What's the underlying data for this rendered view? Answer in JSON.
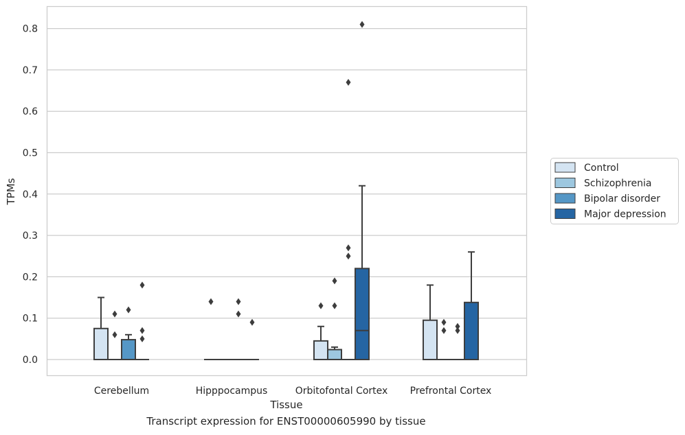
{
  "caption": "Transcript expression for ENST00000605990 by tissue",
  "chart_data": {
    "type": "box",
    "title": "",
    "xlabel": "Tissue",
    "ylabel": "TPMs",
    "ylim": [
      -0.04,
      0.855
    ],
    "yticks": [
      0.0,
      0.1,
      0.2,
      0.3,
      0.4,
      0.5,
      0.6,
      0.7,
      0.8
    ],
    "ytick_labels": [
      "0.0",
      "0.1",
      "0.2",
      "0.3",
      "0.4",
      "0.5",
      "0.6",
      "0.7",
      "0.8"
    ],
    "grid": true,
    "legend_position": "right",
    "categories": [
      "Cerebellum",
      "Hipppocampus",
      "Orbitofontal Cortex",
      "Prefrontal Cortex"
    ],
    "series": [
      {
        "name": "Control",
        "color": "#d4e4f2",
        "boxes": [
          {
            "q1": 0.0,
            "median": 0.0,
            "q3": 0.075,
            "whisker_low": 0.0,
            "whisker_high": 0.15,
            "outliers": []
          },
          {
            "q1": 0.0,
            "median": 0.0,
            "q3": 0.0,
            "whisker_low": 0.0,
            "whisker_high": 0.0,
            "outliers": [
              0.14
            ]
          },
          {
            "q1": 0.0,
            "median": 0.0,
            "q3": 0.045,
            "whisker_low": 0.0,
            "whisker_high": 0.08,
            "outliers": [
              0.13
            ]
          },
          {
            "q1": 0.0,
            "median": 0.0,
            "q3": 0.095,
            "whisker_low": 0.0,
            "whisker_high": 0.18,
            "outliers": []
          }
        ]
      },
      {
        "name": "Schizophrenia",
        "color": "#9dc7df",
        "boxes": [
          {
            "q1": 0.0,
            "median": 0.0,
            "q3": 0.0,
            "whisker_low": 0.0,
            "whisker_high": 0.0,
            "outliers": [
              0.06,
              0.11
            ]
          },
          {
            "q1": 0.0,
            "median": 0.0,
            "q3": 0.0,
            "whisker_low": 0.0,
            "whisker_high": 0.0,
            "outliers": []
          },
          {
            "q1": 0.0,
            "median": 0.0,
            "q3": 0.024,
            "whisker_low": 0.0,
            "whisker_high": 0.03,
            "outliers": [
              0.13,
              0.19
            ]
          },
          {
            "q1": 0.0,
            "median": 0.0,
            "q3": 0.0,
            "whisker_low": 0.0,
            "whisker_high": 0.0,
            "outliers": [
              0.07,
              0.09
            ]
          }
        ]
      },
      {
        "name": "Bipolar disorder",
        "color": "#5597c6",
        "boxes": [
          {
            "q1": 0.0,
            "median": 0.0,
            "q3": 0.048,
            "whisker_low": 0.0,
            "whisker_high": 0.06,
            "outliers": [
              0.12
            ]
          },
          {
            "q1": 0.0,
            "median": 0.0,
            "q3": 0.0,
            "whisker_low": 0.0,
            "whisker_high": 0.0,
            "outliers": [
              0.11,
              0.14
            ]
          },
          {
            "q1": 0.0,
            "median": 0.0,
            "q3": 0.0,
            "whisker_low": 0.0,
            "whisker_high": 0.0,
            "outliers": [
              0.25,
              0.27,
              0.67
            ]
          },
          {
            "q1": 0.0,
            "median": 0.0,
            "q3": 0.0,
            "whisker_low": 0.0,
            "whisker_high": 0.0,
            "outliers": [
              0.07,
              0.08
            ]
          }
        ]
      },
      {
        "name": "Major depression",
        "color": "#2565a3",
        "boxes": [
          {
            "q1": 0.0,
            "median": 0.0,
            "q3": 0.0,
            "whisker_low": 0.0,
            "whisker_high": 0.0,
            "outliers": [
              0.05,
              0.07,
              0.18
            ]
          },
          {
            "q1": 0.0,
            "median": 0.0,
            "q3": 0.0,
            "whisker_low": 0.0,
            "whisker_high": 0.0,
            "outliers": [
              0.09
            ]
          },
          {
            "q1": 0.0,
            "median": 0.07,
            "q3": 0.22,
            "whisker_low": 0.0,
            "whisker_high": 0.42,
            "outliers": [
              0.81
            ]
          },
          {
            "q1": 0.0,
            "median": 0.0,
            "q3": 0.138,
            "whisker_low": 0.0,
            "whisker_high": 0.26,
            "outliers": []
          }
        ]
      }
    ]
  }
}
